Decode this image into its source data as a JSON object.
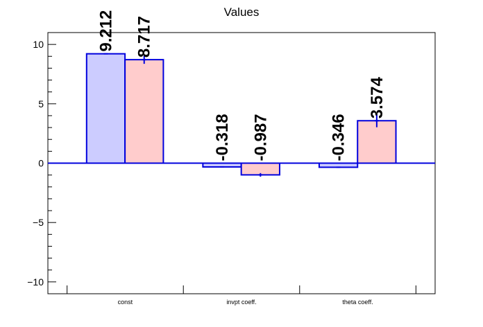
{
  "chart_data": {
    "type": "bar",
    "title": "Values",
    "categories": [
      "const",
      "invpt coeff.",
      "theta coeff."
    ],
    "series": [
      {
        "values": [
          9.212,
          -0.318,
          -0.346
        ],
        "errors": [
          0.0,
          0.05,
          0.05
        ],
        "color": "#ccccff"
      },
      {
        "values": [
          8.717,
          -0.987,
          3.574
        ],
        "errors": [
          0.35,
          0.15,
          0.55
        ],
        "color": "#ffcccc"
      }
    ],
    "data_labels": [
      [
        "9.212",
        "-0.318",
        "-0.346"
      ],
      [
        "8.717",
        "-0.987",
        "3.574"
      ]
    ],
    "ylim": [
      -11,
      11
    ],
    "yticks": [
      -10,
      -5,
      0,
      5,
      10
    ],
    "ytick_labels": [
      "−10",
      "−5",
      "0",
      "5",
      "10"
    ],
    "outline_color": "#0000dd",
    "grid": false
  }
}
